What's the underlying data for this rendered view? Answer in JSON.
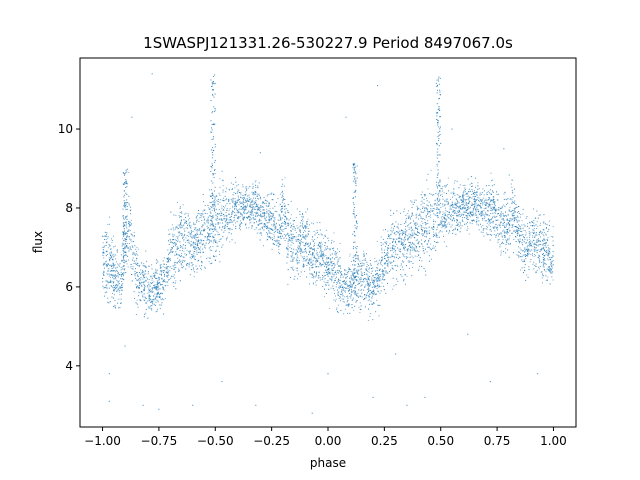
{
  "chart_data": {
    "type": "scatter",
    "title": "1SWASPJ121331.26-530227.9 Period 8497067.0s",
    "xlabel": "phase",
    "ylabel": "flux",
    "xlim": [
      -1.1,
      1.1
    ],
    "ylim": [
      2.45,
      11.8
    ],
    "x_ticks": [
      -1.0,
      -0.75,
      -0.5,
      -0.25,
      0.0,
      0.25,
      0.5,
      0.75,
      1.0
    ],
    "x_tick_labels": [
      "−1.00",
      "−0.75",
      "−0.50",
      "−0.25",
      "0.00",
      "0.25",
      "0.50",
      "0.75",
      "1.00"
    ],
    "y_ticks": [
      4,
      6,
      8,
      10
    ],
    "y_tick_labels": [
      "4",
      "6",
      "8",
      "10"
    ],
    "grid": false,
    "marker_color": "#1f77b4",
    "series": [
      {
        "x": [
          -1.0,
          -0.98,
          -0.95,
          -0.92,
          -0.9,
          -0.88,
          -0.85,
          -0.82,
          -0.8,
          -0.78,
          -0.75,
          -0.72,
          -0.7,
          -0.68,
          -0.65,
          -0.62,
          -0.6,
          -0.58,
          -0.55,
          -0.52,
          -0.5,
          -0.48,
          -0.45,
          -0.42,
          -0.4,
          -0.38,
          -0.35,
          -0.32,
          -0.3,
          -0.28,
          -0.25,
          -0.22,
          -0.2,
          -0.18,
          -0.15,
          -0.12,
          -0.1,
          -0.08,
          -0.05,
          -0.02,
          0.0,
          0.02,
          0.05,
          0.08,
          0.1,
          0.12,
          0.15,
          0.18,
          0.2,
          0.22,
          0.25,
          0.28,
          0.3,
          0.32,
          0.35,
          0.38,
          0.4,
          0.42,
          0.45,
          0.48,
          0.5,
          0.52,
          0.55,
          0.58,
          0.6,
          0.62,
          0.65,
          0.68,
          0.7,
          0.72,
          0.75,
          0.78,
          0.8,
          0.82,
          0.85,
          0.88,
          0.9,
          0.92,
          0.95,
          0.98,
          1.0
        ],
        "y": [
          6.6,
          6.8,
          6.3,
          6.1,
          7.0,
          7.6,
          6.2,
          6.0,
          6.0,
          5.9,
          6.0,
          6.2,
          7.0,
          6.9,
          7.2,
          7.3,
          6.9,
          7.2,
          7.4,
          7.6,
          7.5,
          7.7,
          7.8,
          7.9,
          8.0,
          8.1,
          8.0,
          8.1,
          7.9,
          7.8,
          7.7,
          7.5,
          8.0,
          7.3,
          7.0,
          7.2,
          7.2,
          6.9,
          6.8,
          6.7,
          6.5,
          6.4,
          6.2,
          6.0,
          6.0,
          6.1,
          6.3,
          6.0,
          6.0,
          6.2,
          6.7,
          6.9,
          7.0,
          7.1,
          7.2,
          7.3,
          7.4,
          7.6,
          7.6,
          7.7,
          7.8,
          7.9,
          8.0,
          8.0,
          8.1,
          8.0,
          8.1,
          8.0,
          7.9,
          8.0,
          7.8,
          7.6,
          7.6,
          7.9,
          7.3,
          7.0,
          7.2,
          7.1,
          7.0,
          6.8,
          6.7
        ],
        "spread": [
          0.7,
          0.9,
          0.7,
          0.6,
          0.8,
          0.9,
          0.7,
          0.6,
          0.6,
          0.6,
          0.6,
          0.6,
          0.7,
          0.8,
          0.8,
          0.8,
          0.7,
          0.8,
          0.8,
          0.9,
          0.9,
          0.8,
          0.7,
          0.6,
          0.6,
          0.5,
          0.5,
          0.5,
          0.5,
          0.5,
          0.6,
          0.6,
          0.7,
          0.7,
          0.7,
          0.7,
          0.7,
          0.7,
          0.7,
          0.7,
          0.7,
          0.7,
          0.7,
          0.6,
          0.6,
          0.6,
          0.7,
          0.6,
          0.6,
          0.6,
          0.7,
          0.8,
          0.8,
          0.8,
          0.8,
          0.8,
          0.8,
          0.9,
          0.9,
          0.8,
          0.8,
          0.7,
          0.6,
          0.6,
          0.5,
          0.5,
          0.5,
          0.5,
          0.6,
          0.6,
          0.6,
          0.7,
          0.7,
          0.8,
          0.7,
          0.7,
          0.7,
          0.7,
          0.7,
          0.7,
          0.7
        ]
      }
    ],
    "flares": [
      {
        "x": -0.51,
        "y_top": 11.4
      },
      {
        "x": 0.49,
        "y_top": 11.4
      },
      {
        "x": -0.9,
        "y_top": 9.0
      },
      {
        "x": 0.12,
        "y_top": 9.2
      }
    ],
    "outliers": [
      [
        -0.97,
        3.1
      ],
      [
        -0.97,
        3.8
      ],
      [
        -0.82,
        3.0
      ],
      [
        -0.87,
        10.3
      ],
      [
        -0.78,
        11.4
      ],
      [
        -0.75,
        2.9
      ],
      [
        -0.6,
        3.0
      ],
      [
        -0.47,
        3.6
      ],
      [
        -0.3,
        9.4
      ],
      [
        -0.07,
        2.8
      ],
      [
        0.0,
        3.8
      ],
      [
        0.08,
        10.3
      ],
      [
        0.22,
        11.1
      ],
      [
        0.2,
        3.2
      ],
      [
        0.3,
        4.3
      ],
      [
        0.35,
        3.0
      ],
      [
        0.43,
        3.2
      ],
      [
        0.72,
        3.6
      ],
      [
        0.78,
        9.5
      ],
      [
        0.93,
        3.8
      ],
      [
        -0.32,
        3.0
      ],
      [
        0.62,
        4.8
      ],
      [
        -0.9,
        4.5
      ],
      [
        0.55,
        10.0
      ]
    ]
  }
}
